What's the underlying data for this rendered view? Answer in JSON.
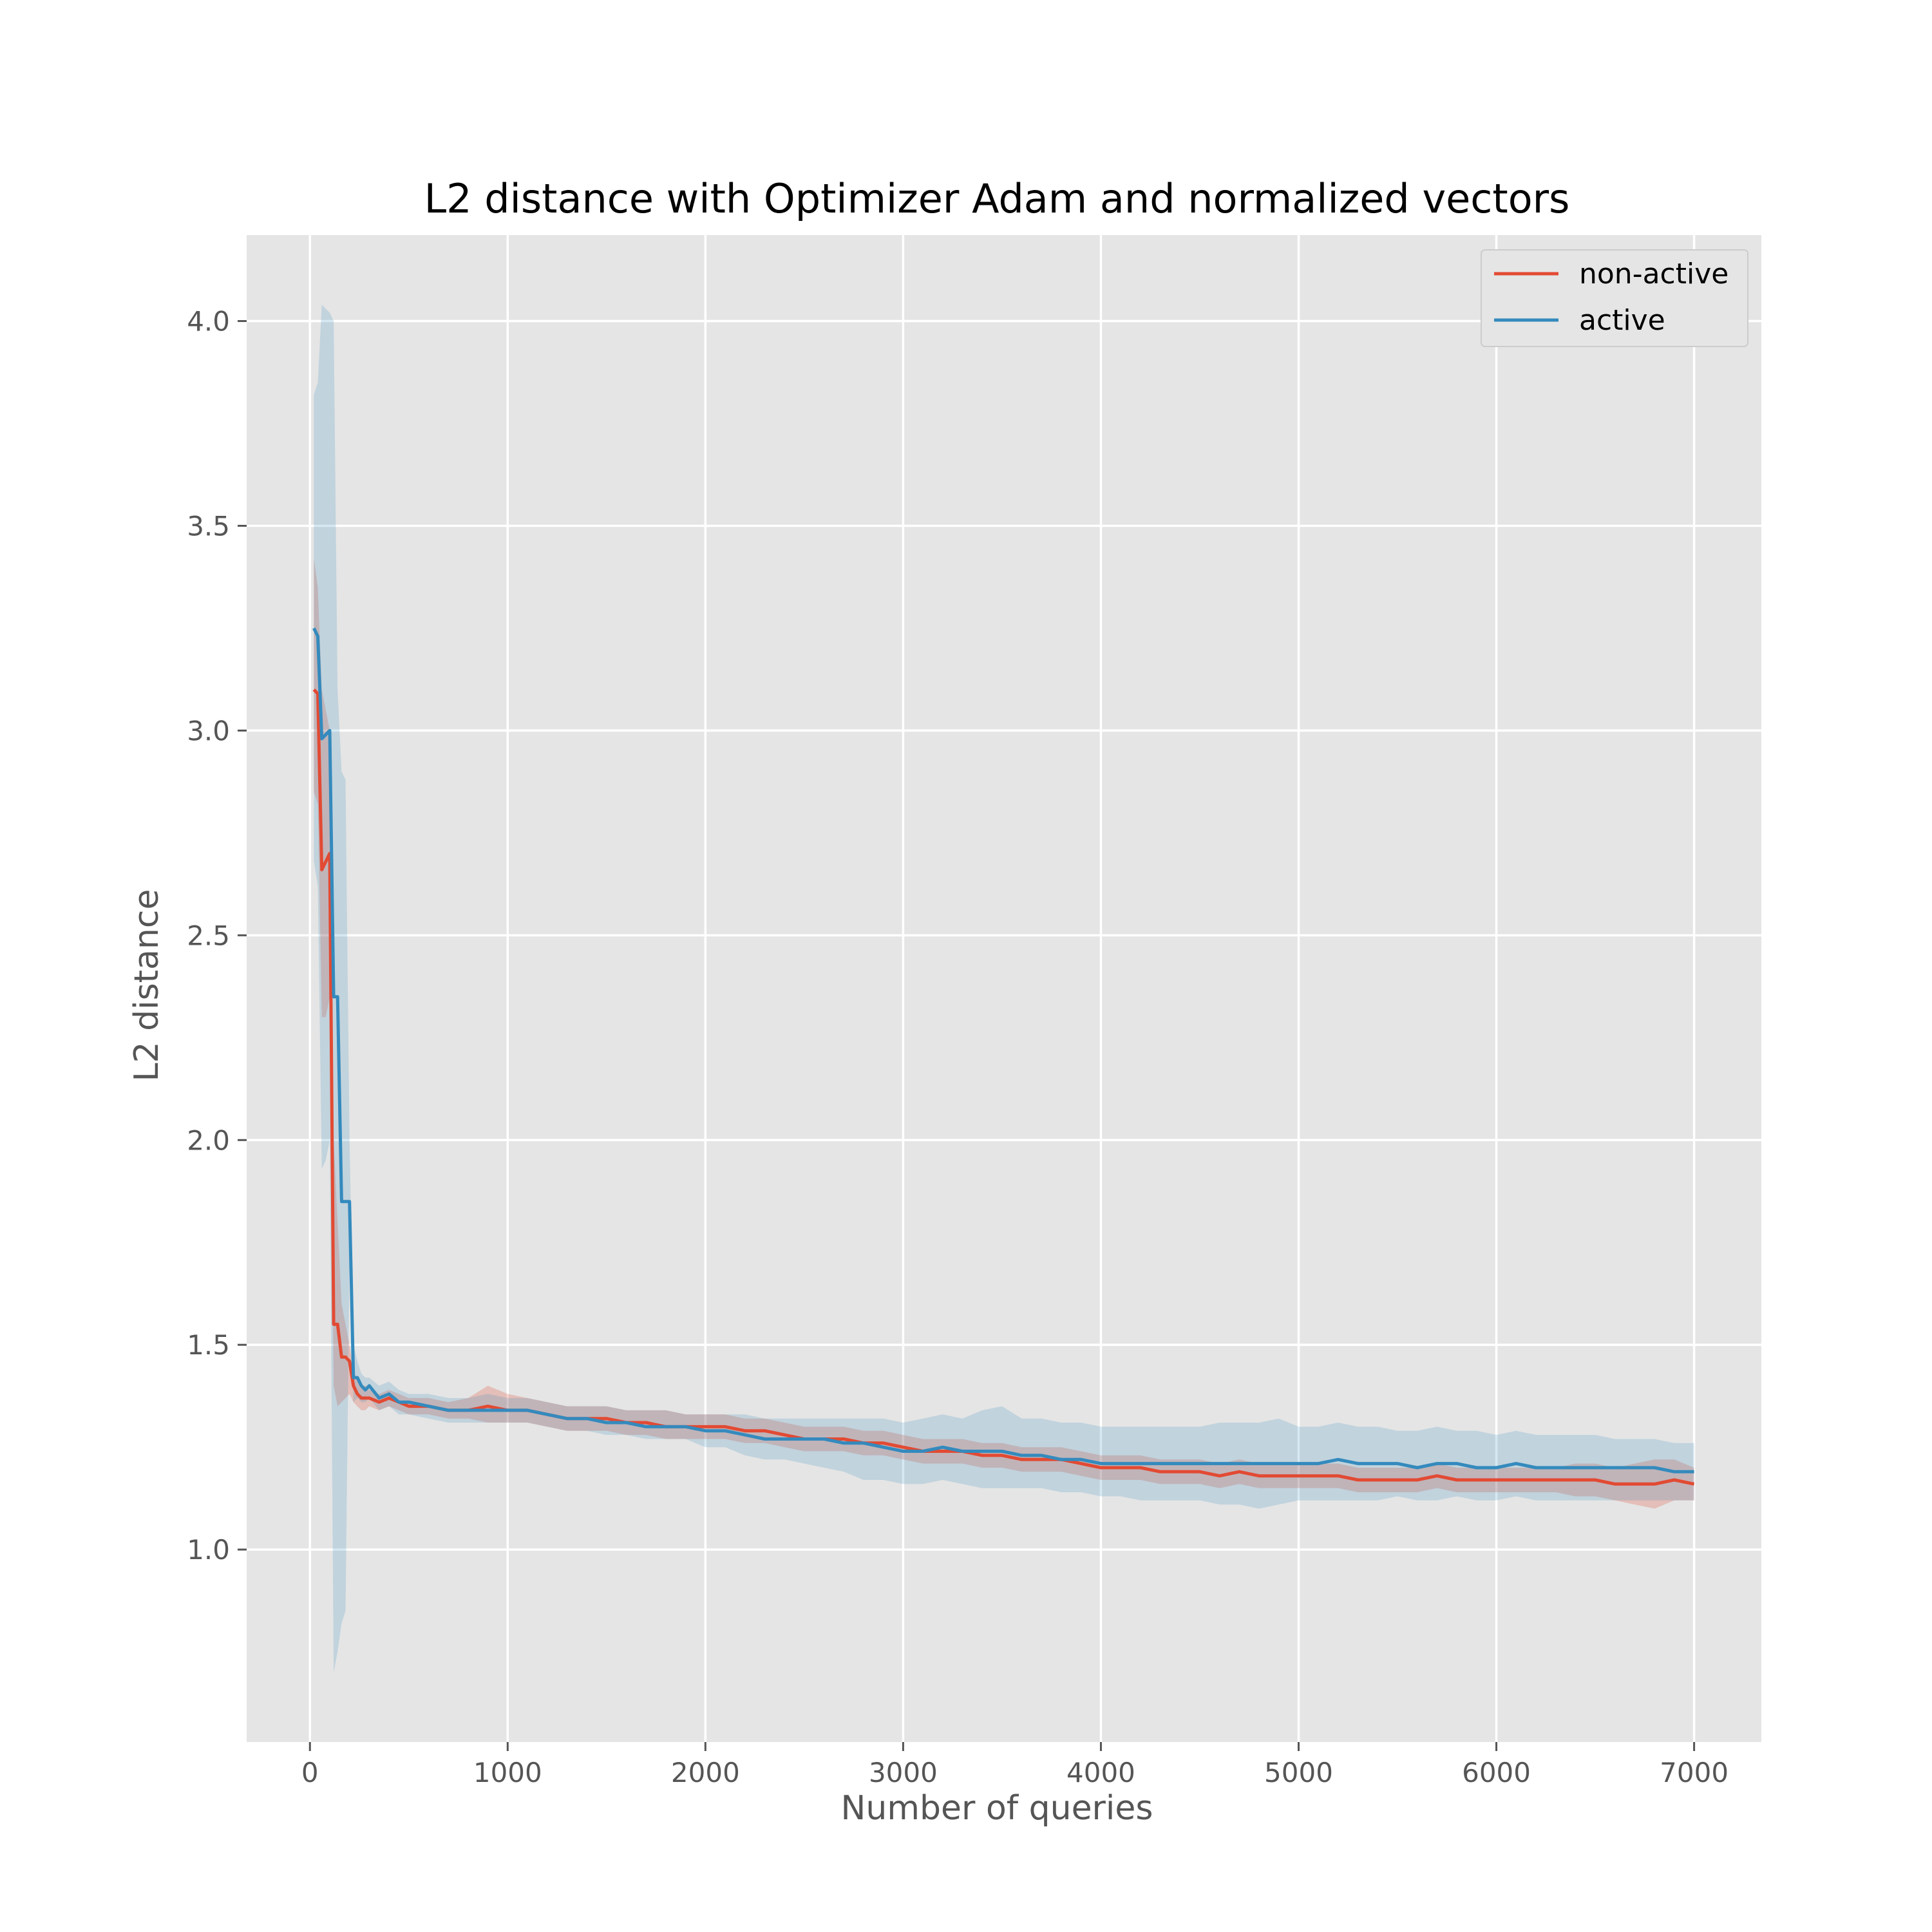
{
  "chart_data": {
    "type": "line",
    "title": "L2 distance with Optimizer Adam and normalized vectors",
    "xlabel": "Number of queries",
    "ylabel": "L2 distance",
    "xlim": [
      -320,
      7340
    ],
    "ylim": [
      0.53,
      4.21
    ],
    "xticks": [
      0,
      1000,
      2000,
      3000,
      4000,
      5000,
      6000,
      7000
    ],
    "yticks": [
      1.0,
      1.5,
      2.0,
      2.5,
      3.0,
      3.5,
      4.0
    ],
    "xtick_labels": [
      "0",
      "1000",
      "2000",
      "3000",
      "4000",
      "5000",
      "6000",
      "7000"
    ],
    "ytick_labels": [
      "1.0",
      "1.5",
      "2.0",
      "2.5",
      "3.0",
      "3.5",
      "4.0"
    ],
    "grid": true,
    "legend_position": "top-right",
    "background": "#e5e5e5",
    "series": [
      {
        "name": "non-active",
        "color": "#e24a33",
        "x": [
          20,
          40,
          60,
          80,
          100,
          120,
          140,
          160,
          180,
          200,
          220,
          240,
          260,
          280,
          300,
          350,
          400,
          450,
          500,
          600,
          700,
          800,
          900,
          1000,
          1100,
          1200,
          1300,
          1400,
          1500,
          1600,
          1700,
          1800,
          1900,
          2000,
          2100,
          2200,
          2300,
          2400,
          2500,
          2600,
          2700,
          2800,
          2900,
          3000,
          3100,
          3200,
          3300,
          3400,
          3500,
          3600,
          3700,
          3800,
          3900,
          4000,
          4100,
          4200,
          4300,
          4400,
          4500,
          4600,
          4700,
          4800,
          4900,
          5000,
          5100,
          5200,
          5300,
          5400,
          5500,
          5600,
          5700,
          5800,
          5900,
          6000,
          6100,
          6200,
          6300,
          6400,
          6500,
          6600,
          6700,
          6800,
          6900,
          7000
        ],
        "y": [
          3.1,
          3.09,
          2.66,
          2.68,
          2.7,
          1.55,
          1.55,
          1.47,
          1.47,
          1.46,
          1.4,
          1.38,
          1.37,
          1.37,
          1.37,
          1.36,
          1.37,
          1.36,
          1.35,
          1.35,
          1.34,
          1.34,
          1.35,
          1.34,
          1.34,
          1.33,
          1.32,
          1.32,
          1.32,
          1.31,
          1.31,
          1.3,
          1.3,
          1.3,
          1.3,
          1.29,
          1.29,
          1.28,
          1.27,
          1.27,
          1.27,
          1.26,
          1.26,
          1.25,
          1.24,
          1.24,
          1.24,
          1.23,
          1.23,
          1.22,
          1.22,
          1.22,
          1.21,
          1.2,
          1.2,
          1.2,
          1.19,
          1.19,
          1.19,
          1.18,
          1.19,
          1.18,
          1.18,
          1.18,
          1.18,
          1.18,
          1.17,
          1.17,
          1.17,
          1.17,
          1.18,
          1.17,
          1.17,
          1.17,
          1.17,
          1.17,
          1.17,
          1.17,
          1.17,
          1.16,
          1.16,
          1.16,
          1.17,
          1.16
        ],
        "upper": [
          3.42,
          3.35,
          3.1,
          3.05,
          3.0,
          2.0,
          1.8,
          1.6,
          1.55,
          1.5,
          1.44,
          1.41,
          1.4,
          1.4,
          1.39,
          1.38,
          1.39,
          1.38,
          1.37,
          1.37,
          1.36,
          1.37,
          1.4,
          1.38,
          1.37,
          1.36,
          1.35,
          1.35,
          1.35,
          1.34,
          1.34,
          1.34,
          1.33,
          1.33,
          1.33,
          1.32,
          1.32,
          1.31,
          1.3,
          1.3,
          1.3,
          1.29,
          1.29,
          1.28,
          1.27,
          1.27,
          1.27,
          1.26,
          1.26,
          1.25,
          1.25,
          1.25,
          1.24,
          1.23,
          1.23,
          1.23,
          1.22,
          1.22,
          1.22,
          1.21,
          1.22,
          1.21,
          1.21,
          1.21,
          1.21,
          1.21,
          1.2,
          1.2,
          1.2,
          1.2,
          1.21,
          1.2,
          1.2,
          1.2,
          1.2,
          1.2,
          1.2,
          1.21,
          1.21,
          1.2,
          1.21,
          1.22,
          1.22,
          1.2
        ],
        "lower": [
          2.85,
          2.82,
          2.3,
          2.3,
          2.35,
          1.4,
          1.35,
          1.36,
          1.37,
          1.38,
          1.36,
          1.35,
          1.34,
          1.34,
          1.35,
          1.34,
          1.35,
          1.34,
          1.33,
          1.33,
          1.32,
          1.32,
          1.31,
          1.31,
          1.31,
          1.3,
          1.29,
          1.29,
          1.29,
          1.28,
          1.28,
          1.27,
          1.27,
          1.27,
          1.27,
          1.26,
          1.26,
          1.25,
          1.24,
          1.24,
          1.24,
          1.23,
          1.23,
          1.22,
          1.21,
          1.21,
          1.21,
          1.2,
          1.2,
          1.19,
          1.19,
          1.19,
          1.18,
          1.17,
          1.17,
          1.17,
          1.16,
          1.16,
          1.16,
          1.15,
          1.16,
          1.15,
          1.15,
          1.15,
          1.15,
          1.15,
          1.14,
          1.14,
          1.14,
          1.14,
          1.15,
          1.14,
          1.14,
          1.14,
          1.14,
          1.14,
          1.14,
          1.13,
          1.13,
          1.12,
          1.11,
          1.1,
          1.12,
          1.12
        ]
      },
      {
        "name": "active",
        "color": "#348abd",
        "x": [
          20,
          40,
          60,
          80,
          100,
          120,
          140,
          160,
          180,
          200,
          220,
          240,
          260,
          280,
          300,
          350,
          400,
          450,
          500,
          600,
          700,
          800,
          900,
          1000,
          1100,
          1200,
          1300,
          1400,
          1500,
          1600,
          1700,
          1800,
          1900,
          2000,
          2100,
          2200,
          2300,
          2400,
          2500,
          2600,
          2700,
          2800,
          2900,
          3000,
          3100,
          3200,
          3300,
          3400,
          3500,
          3600,
          3700,
          3800,
          3900,
          4000,
          4100,
          4200,
          4300,
          4400,
          4500,
          4600,
          4700,
          4800,
          4900,
          5000,
          5100,
          5200,
          5300,
          5400,
          5500,
          5600,
          5700,
          5800,
          5900,
          6000,
          6100,
          6200,
          6300,
          6400,
          6500,
          6600,
          6700,
          6800,
          6900,
          7000
        ],
        "y": [
          3.25,
          3.23,
          2.98,
          2.99,
          3.0,
          2.35,
          2.35,
          1.85,
          1.85,
          1.85,
          1.42,
          1.42,
          1.4,
          1.39,
          1.4,
          1.37,
          1.38,
          1.36,
          1.36,
          1.35,
          1.34,
          1.34,
          1.34,
          1.34,
          1.34,
          1.33,
          1.32,
          1.32,
          1.31,
          1.31,
          1.3,
          1.3,
          1.3,
          1.29,
          1.29,
          1.28,
          1.27,
          1.27,
          1.27,
          1.27,
          1.26,
          1.26,
          1.25,
          1.24,
          1.24,
          1.25,
          1.24,
          1.24,
          1.24,
          1.23,
          1.23,
          1.22,
          1.22,
          1.21,
          1.21,
          1.21,
          1.21,
          1.21,
          1.21,
          1.21,
          1.21,
          1.21,
          1.21,
          1.21,
          1.21,
          1.22,
          1.21,
          1.21,
          1.21,
          1.2,
          1.21,
          1.21,
          1.2,
          1.2,
          1.21,
          1.2,
          1.2,
          1.2,
          1.2,
          1.2,
          1.2,
          1.2,
          1.19,
          1.19
        ],
        "upper": [
          3.82,
          3.85,
          4.04,
          4.03,
          4.02,
          4.0,
          3.1,
          2.9,
          2.88,
          2.0,
          1.5,
          1.46,
          1.43,
          1.42,
          1.42,
          1.4,
          1.41,
          1.39,
          1.38,
          1.38,
          1.37,
          1.37,
          1.38,
          1.37,
          1.37,
          1.36,
          1.35,
          1.35,
          1.35,
          1.34,
          1.34,
          1.34,
          1.33,
          1.33,
          1.33,
          1.33,
          1.32,
          1.32,
          1.32,
          1.32,
          1.32,
          1.32,
          1.32,
          1.31,
          1.32,
          1.33,
          1.32,
          1.34,
          1.35,
          1.32,
          1.32,
          1.31,
          1.31,
          1.3,
          1.3,
          1.3,
          1.3,
          1.3,
          1.3,
          1.31,
          1.31,
          1.31,
          1.32,
          1.3,
          1.3,
          1.31,
          1.3,
          1.3,
          1.29,
          1.29,
          1.3,
          1.29,
          1.29,
          1.28,
          1.29,
          1.28,
          1.28,
          1.28,
          1.28,
          1.27,
          1.27,
          1.27,
          1.26,
          1.26
        ],
        "lower": [
          2.68,
          2.62,
          1.93,
          1.95,
          2.0,
          0.7,
          0.75,
          0.82,
          0.85,
          1.7,
          1.36,
          1.37,
          1.36,
          1.36,
          1.37,
          1.34,
          1.35,
          1.33,
          1.33,
          1.32,
          1.31,
          1.31,
          1.31,
          1.31,
          1.31,
          1.3,
          1.29,
          1.29,
          1.28,
          1.28,
          1.27,
          1.27,
          1.27,
          1.25,
          1.25,
          1.23,
          1.22,
          1.22,
          1.21,
          1.2,
          1.19,
          1.17,
          1.17,
          1.16,
          1.16,
          1.17,
          1.16,
          1.15,
          1.15,
          1.15,
          1.15,
          1.14,
          1.14,
          1.13,
          1.13,
          1.12,
          1.12,
          1.12,
          1.12,
          1.11,
          1.11,
          1.1,
          1.11,
          1.12,
          1.12,
          1.12,
          1.12,
          1.12,
          1.13,
          1.12,
          1.12,
          1.13,
          1.12,
          1.12,
          1.13,
          1.12,
          1.12,
          1.12,
          1.12,
          1.12,
          1.12,
          1.12,
          1.12,
          1.12
        ]
      }
    ]
  }
}
